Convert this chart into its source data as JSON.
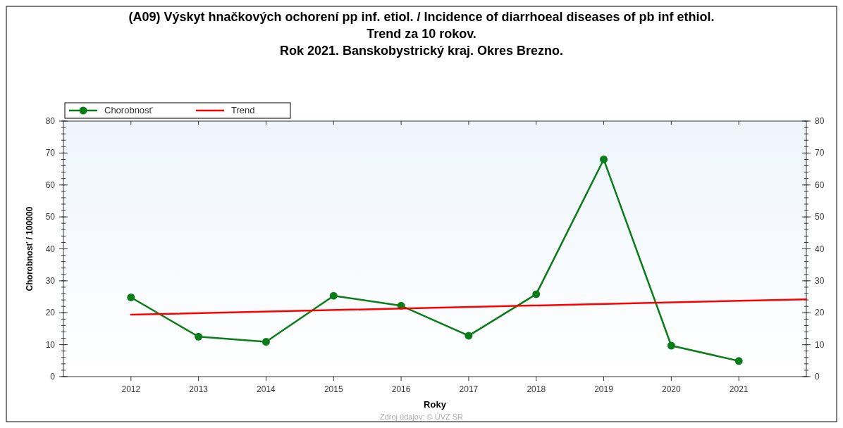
{
  "chart_data": {
    "type": "line",
    "title": "(A09) Výskyt hnačkových ochorení pp inf. etiol. / Incidence of diarrhoeal diseases of pb inf ethiol.",
    "subtitle": "Trend za 10 rokov.\nRok 2021. Banskobystrický kraj. Okres Brezno.",
    "xlabel": "Roky",
    "ylabel": "Chorobnosť / 100000",
    "x": [
      2012,
      2013,
      2014,
      2015,
      2016,
      2017,
      2018,
      2019,
      2020,
      2021
    ],
    "series": [
      {
        "name": "Chorobnosť",
        "color": "#0a7d18",
        "marker": "circle",
        "values": [
          24.8,
          12.5,
          10.9,
          25.3,
          22.2,
          12.8,
          25.8,
          68.0,
          9.7,
          4.9
        ]
      },
      {
        "name": "Trend",
        "color": "#ff0000",
        "marker": "none",
        "x": [
          2012,
          2022
        ],
        "values": [
          19.4,
          24.2
        ]
      }
    ],
    "xlim": [
      2011,
      2022
    ],
    "xticks": [
      2012,
      2013,
      2014,
      2015,
      2016,
      2017,
      2018,
      2019,
      2020,
      2021
    ],
    "ylim": [
      0,
      80
    ],
    "yticks": [
      0,
      10,
      20,
      30,
      40,
      50,
      60,
      70,
      80
    ],
    "y2lim": [
      0,
      80
    ],
    "y2ticks": [
      0,
      10,
      20,
      30,
      40,
      50,
      60,
      70,
      80
    ],
    "legend": "top left",
    "grid": false,
    "line_style": "solid",
    "annotations": [
      "Zdroj údajov: © ÚVZ SR"
    ]
  }
}
